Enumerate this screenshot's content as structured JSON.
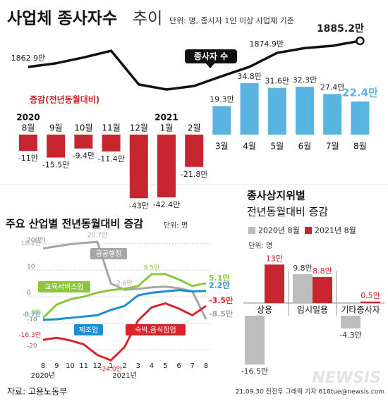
{
  "header": {
    "title": "사업체 종사자수",
    "title_light": "추이",
    "note": "단위: 명, 종사자 1인 이상 사업체 기준"
  },
  "chart_data": [
    {
      "type": "line",
      "annotation": "종사자 수",
      "color": "#111111",
      "values": [
        1862.9,
        1866,
        1871,
        1876.7,
        1847.9,
        1843.6,
        1846.6,
        1855,
        1863,
        1874.9,
        1879,
        1881,
        1885.2
      ],
      "value_labels": [
        "1862.9만",
        null,
        null,
        null,
        null,
        null,
        null,
        null,
        null,
        "1874.9만",
        null,
        null,
        "1885.2만"
      ]
    },
    {
      "type": "bar",
      "title": "증감(전년동월대비)",
      "years": [
        "2020",
        "2021"
      ],
      "categories": [
        "8월",
        "9월",
        "10월",
        "11월",
        "12월",
        "1월",
        "2월",
        "3월",
        "4월",
        "5월",
        "6월",
        "7월",
        "8월"
      ],
      "values": [
        -11,
        -15.5,
        -9.4,
        -11.4,
        -43,
        -42.4,
        -21.8,
        19.3,
        34.8,
        31.6,
        32.3,
        27.4,
        22.4
      ],
      "value_labels": [
        "-11만",
        "-15.5만",
        "-9.4만",
        "-11.4만",
        "-43만",
        "-42.4만",
        "-21.8만",
        "19.3만",
        "34.8만",
        "31.6만",
        "32.3만",
        "27.4만",
        "22.4만"
      ],
      "colors": {
        "negative": "#c8262e",
        "positive": "#5ab4e2"
      }
    },
    {
      "type": "multi_line",
      "title": "주요 산업별 전년동월대비 증감",
      "unit": "단위: 명",
      "categories": [
        "8",
        "9",
        "10",
        "11",
        "12",
        "1",
        "2",
        "3",
        "4",
        "5",
        "6",
        "7",
        "8"
      ],
      "years": [
        "2020년",
        "2021년"
      ],
      "ylim": [
        -25,
        21
      ],
      "yticks": [
        {
          "value": 20,
          "label": "20(만)"
        },
        10,
        0,
        -10,
        -20
      ],
      "grid": true,
      "series": [
        {
          "name": "공공행정",
          "color": "#a6a6a6",
          "values": [
            18.2,
            19.0,
            19.8,
            20.3,
            20.7,
            5.0,
            2.6,
            3.0,
            3.5,
            3.8,
            3.2,
            2.0,
            -8.5
          ],
          "value_labels": [
            "18.2만",
            null,
            null,
            null,
            "20.7만",
            null,
            "2.6만",
            null,
            null,
            null,
            null,
            null,
            "-8.5만"
          ]
        },
        {
          "name": "교육서비스업",
          "color": "#8cc63e",
          "values": [
            -8,
            -3,
            -1,
            0,
            1.5,
            2.5,
            3.0,
            4.0,
            8.5,
            8.5,
            6.5,
            4.0,
            5.1
          ],
          "value_labels": [
            "-8만",
            null,
            null,
            null,
            null,
            null,
            null,
            null,
            "8.5만",
            null,
            null,
            null,
            "5.1만"
          ]
        },
        {
          "name": "제조업",
          "color": "#1c8fd2",
          "values": [
            -8.7,
            -8.5,
            -8.0,
            -7.5,
            -7.0,
            -5.0,
            -3.5,
            0.5,
            1.5,
            2.0,
            2.5,
            2.0,
            2.2
          ],
          "value_labels": [
            "-8.7만",
            null,
            null,
            null,
            null,
            null,
            null,
            null,
            null,
            null,
            null,
            null,
            "2.2만"
          ]
        },
        {
          "name": "숙박,음식점업",
          "color": "#d7262b",
          "values": [
            -16.3,
            -15.5,
            -16.5,
            -18.0,
            -22.0,
            -24.0,
            -19.0,
            -9.0,
            -4.0,
            -2.5,
            -4.5,
            -7.0,
            -3.5
          ],
          "value_labels": [
            "-16.3만",
            null,
            null,
            null,
            null,
            "-24.0만",
            null,
            null,
            null,
            null,
            null,
            null,
            "-3.5만"
          ]
        }
      ]
    },
    {
      "type": "grouped_bar",
      "title": "종사상지위별",
      "subtitle": "전년동월대비 증감",
      "unit": "단위: 명",
      "categories": [
        "상용",
        "임시일용",
        "기타종사자"
      ],
      "series": [
        {
          "name": "2020년 8월",
          "color": "#bdbdbd",
          "values": [
            -16.5,
            9.8,
            -4.3
          ],
          "value_labels": [
            "-16.5만",
            "9.8만",
            "-4.3만"
          ]
        },
        {
          "name": "2021년 8월",
          "color": "#c8262e",
          "values": [
            13,
            8.8,
            0.5
          ],
          "value_labels": [
            "13만",
            "8.8만",
            "0.5만"
          ]
        }
      ]
    }
  ],
  "footer": {
    "source": "자료: 고용노동부",
    "credit": "21.09.30 전진우 그래픽 기자 618tue@newsis.com",
    "watermark": "NEWSIS"
  }
}
